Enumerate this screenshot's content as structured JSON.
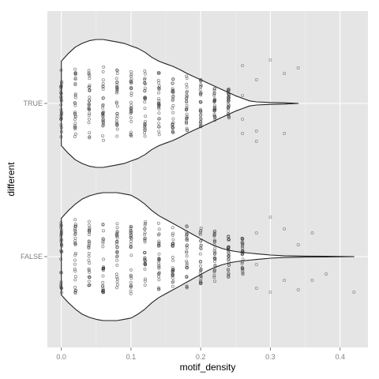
{
  "chart_data": {
    "type": "violin",
    "xlabel": "motif_density",
    "ylabel": "different",
    "xlim": [
      -0.02,
      0.44
    ],
    "x_ticks": [
      {
        "value": 0.0,
        "label": "0.0"
      },
      {
        "value": 0.1,
        "label": "0.1"
      },
      {
        "value": 0.2,
        "label": "0.2"
      },
      {
        "value": 0.3,
        "label": "0.3"
      },
      {
        "value": 0.4,
        "label": "0.4"
      }
    ],
    "categories": [
      "FALSE",
      "TRUE"
    ],
    "grid": true,
    "panel_background": "#e5e5e5",
    "grid_color": "#ffffff",
    "violin_fill": "#ffffff",
    "violin_stroke": "#222222",
    "point_color": "#333333",
    "series": [
      {
        "category": "TRUE",
        "point_columns": [
          {
            "x": 0.0,
            "spread": 0.95
          },
          {
            "x": 0.02,
            "spread": 0.95
          },
          {
            "x": 0.04,
            "spread": 0.95
          },
          {
            "x": 0.06,
            "spread": 1.0
          },
          {
            "x": 0.08,
            "spread": 0.95
          },
          {
            "x": 0.1,
            "spread": 0.95
          },
          {
            "x": 0.12,
            "spread": 0.92
          },
          {
            "x": 0.14,
            "spread": 0.85
          },
          {
            "x": 0.16,
            "spread": 0.8
          },
          {
            "x": 0.18,
            "spread": 0.75
          },
          {
            "x": 0.2,
            "spread": 0.65
          },
          {
            "x": 0.22,
            "spread": 0.5
          },
          {
            "x": 0.24,
            "spread": 0.4
          }
        ],
        "sparse_points": [
          {
            "x": 0.26,
            "y": 0.38
          },
          {
            "x": 0.26,
            "y": 0.2
          },
          {
            "x": 0.26,
            "y": -0.1
          },
          {
            "x": 0.26,
            "y": -0.48
          },
          {
            "x": 0.28,
            "y": 0.48
          },
          {
            "x": 0.28,
            "y": 0.35
          },
          {
            "x": 0.28,
            "y": -0.3
          },
          {
            "x": 0.3,
            "y": -0.55
          },
          {
            "x": 0.32,
            "y": 0.38
          },
          {
            "x": 0.32,
            "y": -0.38
          },
          {
            "x": 0.34,
            "y": -0.45
          }
        ],
        "density": [
          [
            0.0,
            0.66
          ],
          [
            0.01,
            0.78
          ],
          [
            0.02,
            0.88
          ],
          [
            0.03,
            0.94
          ],
          [
            0.04,
            0.98
          ],
          [
            0.05,
            1.0
          ],
          [
            0.06,
            1.0
          ],
          [
            0.07,
            0.98
          ],
          [
            0.08,
            0.96
          ],
          [
            0.09,
            0.94
          ],
          [
            0.1,
            0.9
          ],
          [
            0.11,
            0.86
          ],
          [
            0.12,
            0.8
          ],
          [
            0.13,
            0.72
          ],
          [
            0.14,
            0.66
          ],
          [
            0.15,
            0.62
          ],
          [
            0.16,
            0.58
          ],
          [
            0.17,
            0.53
          ],
          [
            0.18,
            0.47
          ],
          [
            0.19,
            0.42
          ],
          [
            0.2,
            0.37
          ],
          [
            0.21,
            0.32
          ],
          [
            0.22,
            0.27
          ],
          [
            0.23,
            0.22
          ],
          [
            0.24,
            0.17
          ],
          [
            0.25,
            0.12
          ],
          [
            0.26,
            0.08
          ],
          [
            0.27,
            0.04
          ],
          [
            0.28,
            0.025
          ],
          [
            0.3,
            0.015
          ],
          [
            0.32,
            0.01
          ],
          [
            0.34,
            0.0
          ]
        ]
      },
      {
        "category": "FALSE",
        "point_columns": [
          {
            "x": 0.0,
            "spread": 0.98
          },
          {
            "x": 0.02,
            "spread": 1.0
          },
          {
            "x": 0.04,
            "spread": 1.0
          },
          {
            "x": 0.06,
            "spread": 1.0
          },
          {
            "x": 0.08,
            "spread": 1.0
          },
          {
            "x": 0.1,
            "spread": 1.0
          },
          {
            "x": 0.12,
            "spread": 0.97
          },
          {
            "x": 0.14,
            "spread": 0.9
          },
          {
            "x": 0.16,
            "spread": 0.88
          },
          {
            "x": 0.18,
            "spread": 0.85
          },
          {
            "x": 0.2,
            "spread": 0.78
          },
          {
            "x": 0.22,
            "spread": 0.7
          },
          {
            "x": 0.24,
            "spread": 0.6
          },
          {
            "x": 0.26,
            "spread": 0.5
          }
        ],
        "sparse_points": [
          {
            "x": 0.28,
            "y": 0.4
          },
          {
            "x": 0.28,
            "y": 0.1
          },
          {
            "x": 0.28,
            "y": -0.3
          },
          {
            "x": 0.3,
            "y": 0.45
          },
          {
            "x": 0.3,
            "y": -0.5
          },
          {
            "x": 0.32,
            "y": 0.3
          },
          {
            "x": 0.32,
            "y": -0.35
          },
          {
            "x": 0.34,
            "y": 0.42
          },
          {
            "x": 0.34,
            "y": -0.15
          },
          {
            "x": 0.36,
            "y": 0.3
          },
          {
            "x": 0.36,
            "y": -0.3
          },
          {
            "x": 0.38,
            "y": 0.22
          },
          {
            "x": 0.42,
            "y": 0.45
          }
        ],
        "density": [
          [
            0.0,
            0.6
          ],
          [
            0.01,
            0.72
          ],
          [
            0.02,
            0.82
          ],
          [
            0.03,
            0.9
          ],
          [
            0.04,
            0.95
          ],
          [
            0.05,
            0.98
          ],
          [
            0.06,
            1.0
          ],
          [
            0.07,
            1.0
          ],
          [
            0.08,
            1.0
          ],
          [
            0.09,
            0.98
          ],
          [
            0.1,
            0.96
          ],
          [
            0.11,
            0.9
          ],
          [
            0.12,
            0.82
          ],
          [
            0.13,
            0.72
          ],
          [
            0.14,
            0.64
          ],
          [
            0.15,
            0.58
          ],
          [
            0.16,
            0.52
          ],
          [
            0.17,
            0.46
          ],
          [
            0.18,
            0.4
          ],
          [
            0.19,
            0.34
          ],
          [
            0.2,
            0.28
          ],
          [
            0.21,
            0.22
          ],
          [
            0.22,
            0.17
          ],
          [
            0.23,
            0.13
          ],
          [
            0.24,
            0.1
          ],
          [
            0.25,
            0.08
          ],
          [
            0.26,
            0.065
          ],
          [
            0.27,
            0.055
          ],
          [
            0.28,
            0.045
          ],
          [
            0.29,
            0.035
          ],
          [
            0.3,
            0.025
          ],
          [
            0.32,
            0.014
          ],
          [
            0.35,
            0.008
          ],
          [
            0.38,
            0.005
          ],
          [
            0.42,
            0.0
          ]
        ]
      }
    ]
  }
}
